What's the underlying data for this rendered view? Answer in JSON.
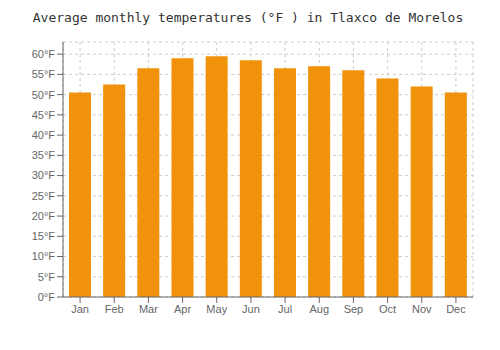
{
  "chart_data": {
    "type": "bar",
    "title": "Average monthly temperatures (°F ) in Tlaxco de Morelos",
    "categories": [
      "Jan",
      "Feb",
      "Mar",
      "Apr",
      "May",
      "Jun",
      "Jul",
      "Aug",
      "Sep",
      "Oct",
      "Nov",
      "Dec"
    ],
    "values": [
      50.5,
      52.5,
      56.5,
      59.0,
      59.5,
      58.5,
      56.5,
      57.0,
      56.0,
      54.0,
      52.0,
      50.5
    ],
    "color": "#F0920A",
    "ylim": [
      0,
      63
    ],
    "yticks": [
      {
        "value": 0,
        "label": "0°F"
      },
      {
        "value": 5,
        "label": "5°F"
      },
      {
        "value": 10,
        "label": "10°F"
      },
      {
        "value": 15,
        "label": "15°F"
      },
      {
        "value": 20,
        "label": "20°F"
      },
      {
        "value": 25,
        "label": "25°F"
      },
      {
        "value": 30,
        "label": "30°F"
      },
      {
        "value": 35,
        "label": "35°F"
      },
      {
        "value": 40,
        "label": "40°F"
      },
      {
        "value": 45,
        "label": "45°F"
      },
      {
        "value": 50,
        "label": "50°F"
      },
      {
        "value": 55,
        "label": "55°F"
      },
      {
        "value": 60,
        "label": "60°F"
      }
    ],
    "grid": true
  }
}
